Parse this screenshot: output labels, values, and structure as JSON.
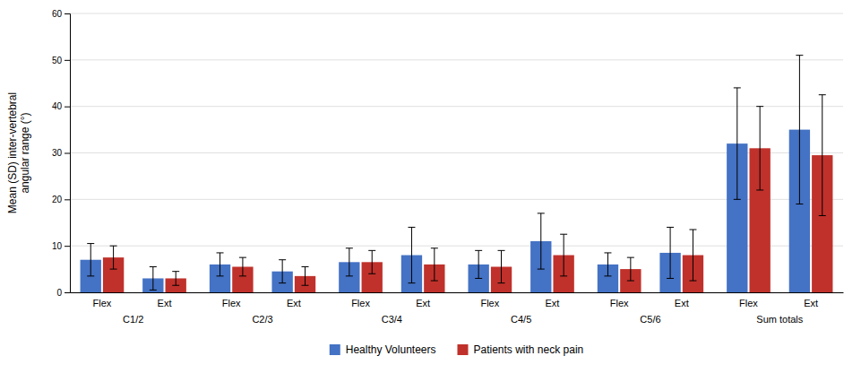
{
  "chart_data": {
    "type": "bar",
    "ylabel": "Mean (SD) inter-vertebral\nangular range (°)",
    "categories": [
      "C1/2",
      "C2/3",
      "C3/4",
      "C4/5",
      "C5/6",
      "Sum totals"
    ],
    "subcategories": [
      "Flex",
      "Ext"
    ],
    "series": [
      {
        "name": "Healthy Volunteers",
        "color": "#4472C4",
        "values": [
          [
            7.0,
            3.0
          ],
          [
            6.0,
            4.5
          ],
          [
            6.5,
            8.0
          ],
          [
            6.0,
            11.0
          ],
          [
            6.0,
            8.5
          ],
          [
            32.0,
            35.0
          ]
        ],
        "errors": [
          [
            3.5,
            2.5
          ],
          [
            2.5,
            2.5
          ],
          [
            3.0,
            6.0
          ],
          [
            3.0,
            6.0
          ],
          [
            2.5,
            5.5
          ],
          [
            12.0,
            16.0
          ]
        ]
      },
      {
        "name": "Patients with neck pain",
        "color": "#C0312B",
        "values": [
          [
            7.5,
            3.0
          ],
          [
            5.5,
            3.5
          ],
          [
            6.5,
            6.0
          ],
          [
            5.5,
            8.0
          ],
          [
            5.0,
            8.0
          ],
          [
            31.0,
            29.5
          ]
        ],
        "errors": [
          [
            2.5,
            1.5
          ],
          [
            2.0,
            2.0
          ],
          [
            2.5,
            3.5
          ],
          [
            3.5,
            4.5
          ],
          [
            2.5,
            5.5
          ],
          [
            9.0,
            13.0
          ]
        ]
      }
    ],
    "ylim": [
      0,
      60
    ],
    "yticks": [
      0,
      10,
      20,
      30,
      40,
      50,
      60
    ],
    "grid": true,
    "legend": "bottom"
  }
}
